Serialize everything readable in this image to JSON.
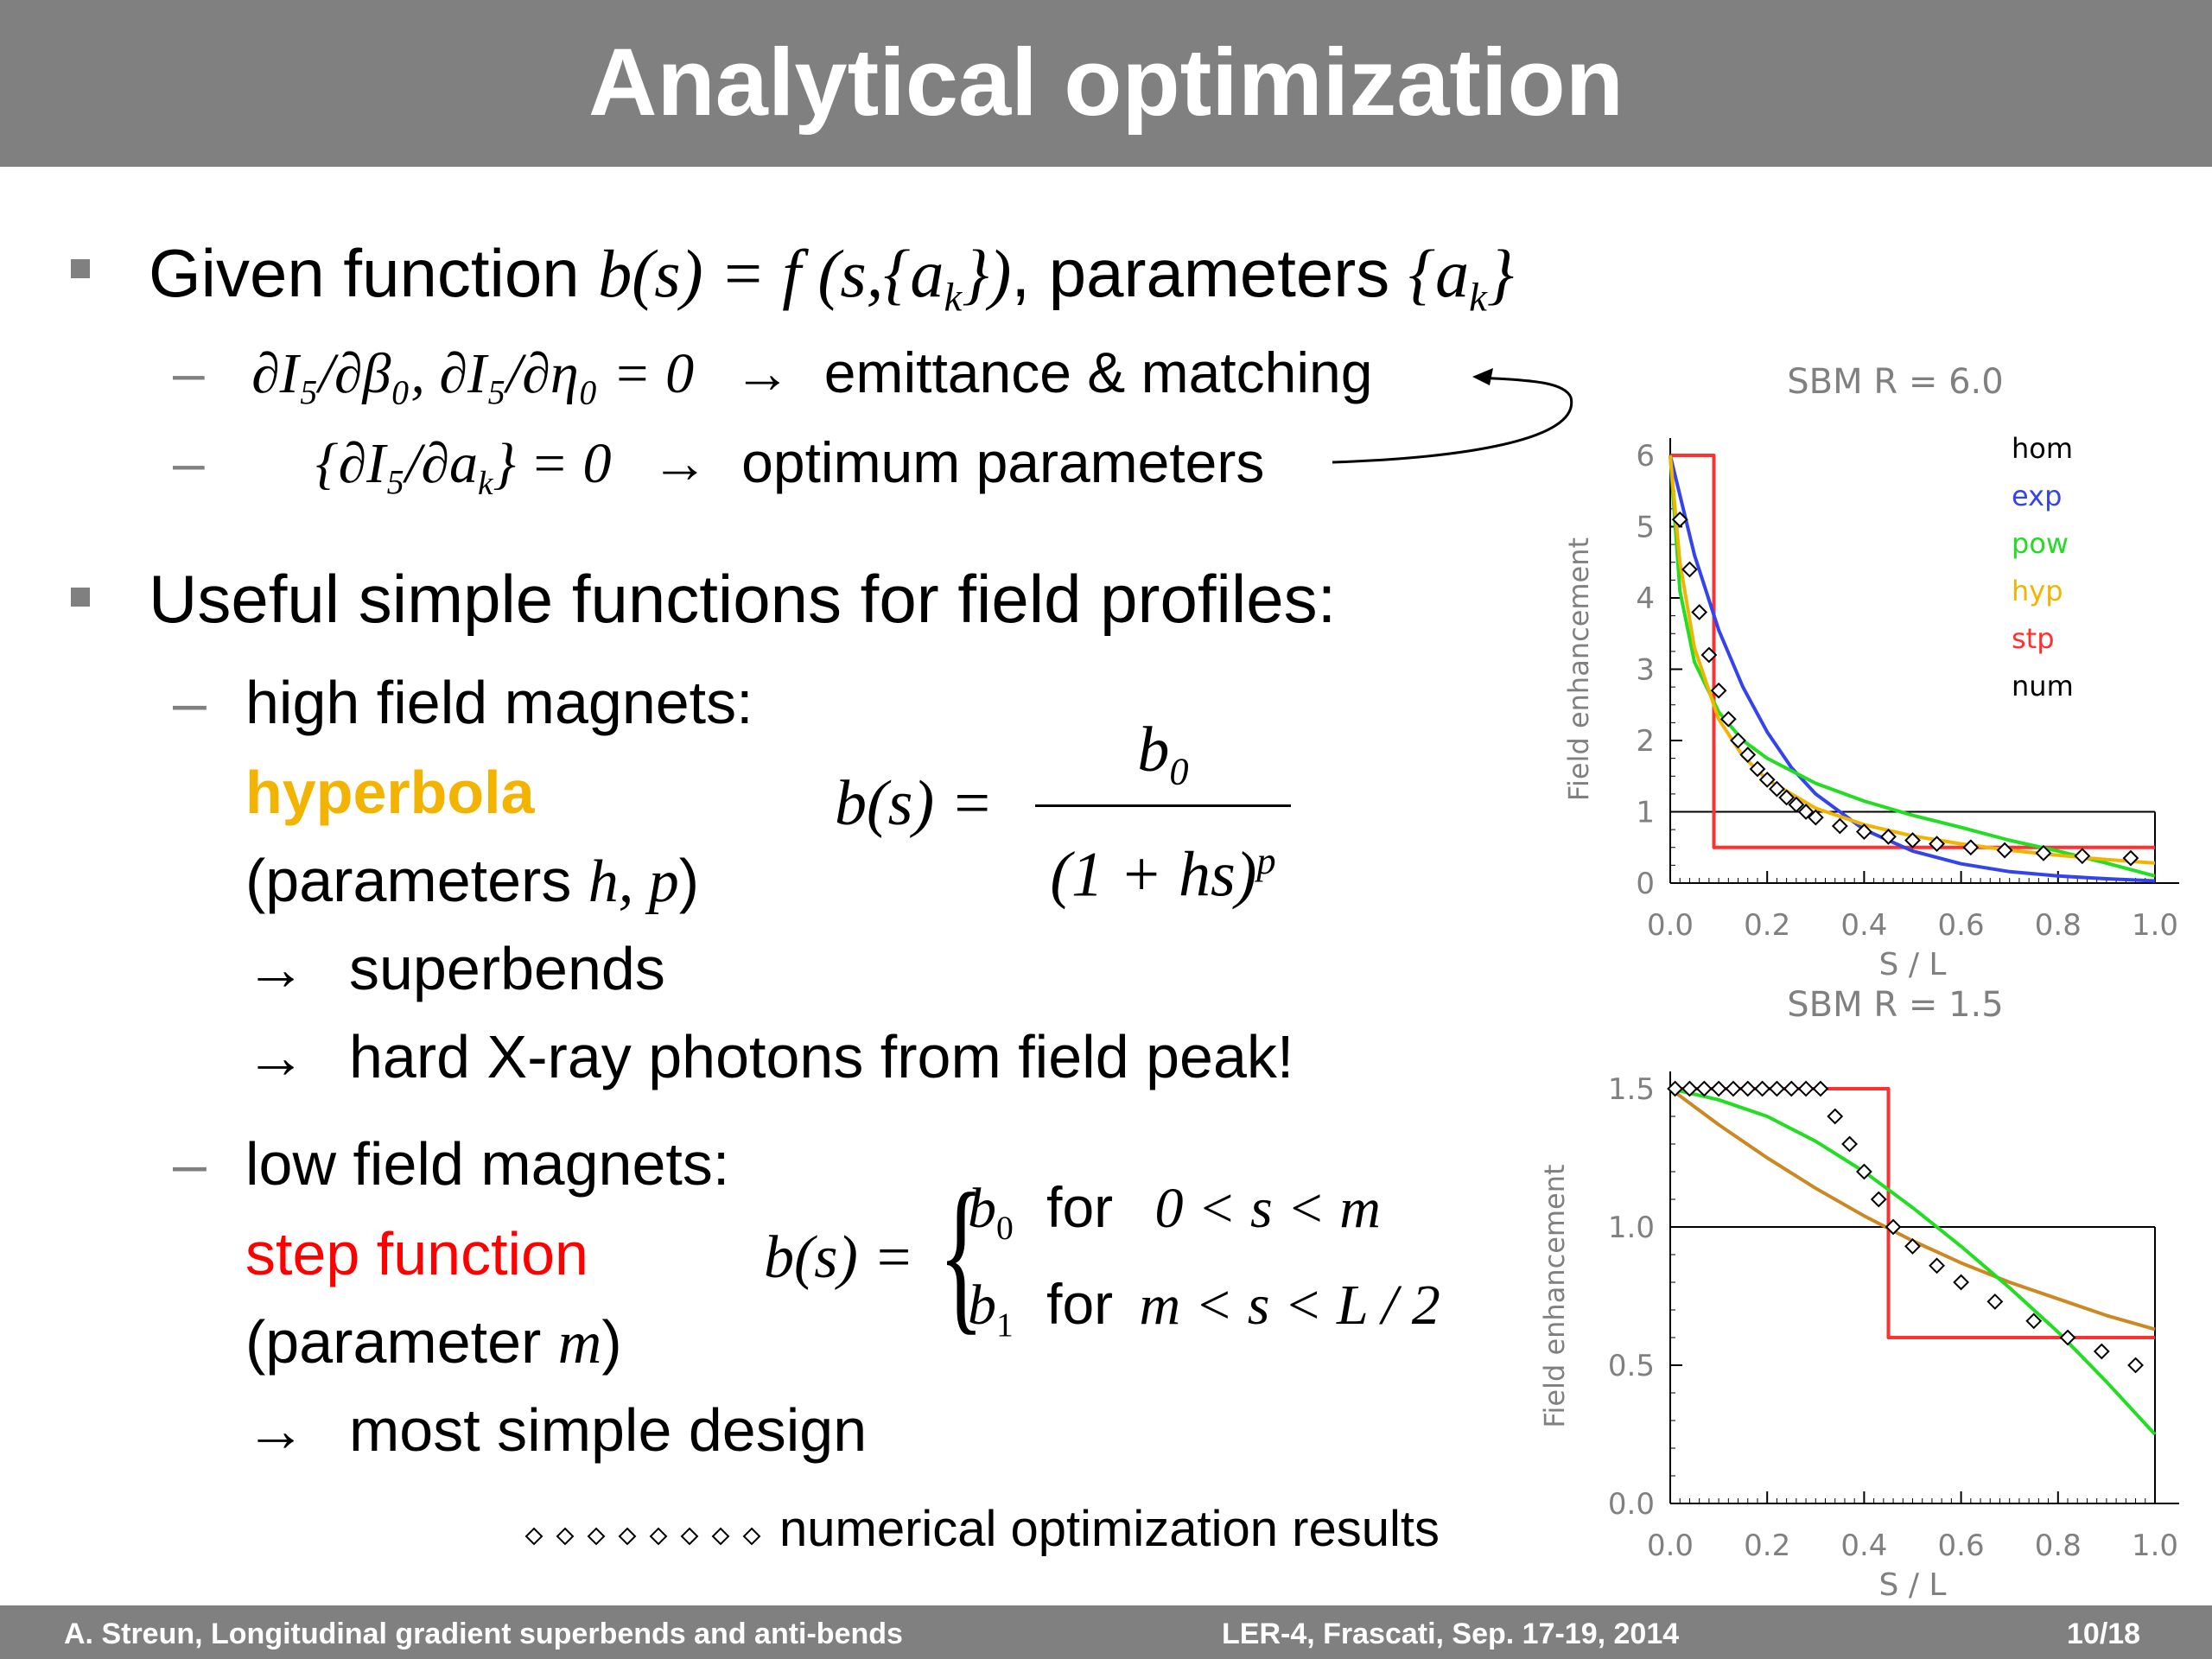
{
  "slide": {
    "title": "Analytical optimization",
    "footer_left": "A. Streun, Longitudinal gradient superbends and anti-bends",
    "footer_center": "LER-4, Frascati,  Sep. 17-19, 2014",
    "footer_right": "10/18"
  },
  "bullet1": {
    "text_a": "Given function ",
    "formula": "b(s) = f (s,{a",
    "formula_sub": "k",
    "formula_end": "})",
    "text_b": ", parameters ",
    "param_open": "{a",
    "param_sub": "k",
    "param_close": "}",
    "sub1_formula": "∂I₅/∂β₀, ∂I₅/∂η₀ = 0",
    "sub1_arrow": "→",
    "sub1_text": "emittance & matching",
    "sub2_formula": "{∂I₅/∂a",
    "sub2_formula_sub": "k",
    "sub2_formula_end": "} = 0",
    "sub2_arrow": "→",
    "sub2_text": "optimum parameters"
  },
  "bullet2": {
    "text": "Useful simple functions for field profiles:",
    "high_label": "high field magnets:",
    "hyperbola": "hyperbola",
    "hyp_params_a": "(parameters ",
    "hyp_params_m": "h, p",
    "hyp_params_b": ")",
    "arrow": "→",
    "superbends": "superbends",
    "hard_xray": "hard X-ray photons from field peak!",
    "hyp_lhs": "b(s) =",
    "hyp_num": "b",
    "hyp_num_sub": "0",
    "hyp_den": "(1 + hs)",
    "hyp_den_sup": "p",
    "low_label": "low field magnets:",
    "step_function": "step function",
    "step_params_a": "(parameter ",
    "step_params_m": "m",
    "step_params_b": ")",
    "simple_design": "most simple design",
    "step_lhs": "b(s) =",
    "case1_b": "b",
    "case1_sub": "0",
    "case1_for": "for",
    "case1_cond": "0 < s < m",
    "case2_b": "b",
    "case2_sub": "1",
    "case2_for": "for",
    "case2_cond": "m < s < L / 2",
    "numerical_note": "numerical optimization results"
  },
  "chart_data": [
    {
      "type": "line",
      "title": "SBM   R  =  6.0",
      "xlabel": "S  /  L",
      "ylabel": "Field enhancement",
      "xlim": [
        0,
        1.0
      ],
      "ylim": [
        0,
        6
      ],
      "xticks": [
        "0.0",
        "0.2",
        "0.4",
        "0.6",
        "0.8",
        "1.0"
      ],
      "yticks": [
        "0",
        "1",
        "2",
        "3",
        "4",
        "5",
        "6"
      ],
      "legend": [
        "hom",
        "exp",
        "pow",
        "hyp",
        "stp",
        "num"
      ],
      "legend_position": "top-right",
      "colors": {
        "hom": "#000000",
        "exp": "#3344ee",
        "pow": "#22dd22",
        "hyp": "#f2b400",
        "stp": "#ff3030",
        "num": "#000000"
      },
      "series": [
        {
          "name": "hom",
          "x": [
            0,
            1.0
          ],
          "y": [
            1,
            1
          ]
        },
        {
          "name": "stp",
          "x": [
            0,
            0.09,
            0.09,
            1.0
          ],
          "y": [
            6,
            6,
            0.5,
            0.5
          ]
        },
        {
          "name": "exp",
          "x": [
            0,
            0.05,
            0.1,
            0.15,
            0.2,
            0.25,
            0.3,
            0.4,
            0.5,
            0.6,
            0.7,
            0.8,
            0.9,
            1.0
          ],
          "y": [
            6,
            4.6,
            3.55,
            2.75,
            2.12,
            1.62,
            1.25,
            0.75,
            0.45,
            0.27,
            0.16,
            0.1,
            0.06,
            0.03
          ]
        },
        {
          "name": "pow",
          "x": [
            0,
            0.02,
            0.05,
            0.1,
            0.15,
            0.2,
            0.3,
            0.4,
            0.5,
            0.6,
            0.7,
            0.8,
            0.9,
            1.0
          ],
          "y": [
            6,
            4.1,
            3.1,
            2.4,
            2.0,
            1.75,
            1.4,
            1.15,
            0.95,
            0.78,
            0.6,
            0.45,
            0.28,
            0.1
          ]
        },
        {
          "name": "hyp",
          "x": [
            0,
            0.02,
            0.05,
            0.1,
            0.15,
            0.2,
            0.3,
            0.4,
            0.5,
            0.6,
            0.7,
            0.8,
            0.9,
            1.0
          ],
          "y": [
            6,
            4.5,
            3.3,
            2.3,
            1.78,
            1.45,
            1.05,
            0.82,
            0.66,
            0.55,
            0.46,
            0.39,
            0.33,
            0.28
          ]
        },
        {
          "name": "num",
          "x": [
            0.02,
            0.04,
            0.06,
            0.08,
            0.1,
            0.12,
            0.14,
            0.16,
            0.18,
            0.2,
            0.22,
            0.24,
            0.26,
            0.28,
            0.3,
            0.35,
            0.4,
            0.45,
            0.5,
            0.55,
            0.62,
            0.69,
            0.77,
            0.85,
            0.95
          ],
          "y": [
            5.1,
            4.4,
            3.8,
            3.2,
            2.7,
            2.3,
            2.0,
            1.8,
            1.6,
            1.45,
            1.32,
            1.2,
            1.1,
            1.0,
            0.92,
            0.8,
            0.72,
            0.65,
            0.6,
            0.55,
            0.5,
            0.46,
            0.42,
            0.38,
            0.35
          ]
        }
      ]
    },
    {
      "type": "line",
      "title": "SBM   R  =  1.5",
      "xlabel": "S  /  L",
      "ylabel": "Field enhancement",
      "xlim": [
        0,
        1.0
      ],
      "ylim": [
        0,
        1.5
      ],
      "xticks": [
        "0.0",
        "0.2",
        "0.4",
        "0.6",
        "0.8",
        "1.0"
      ],
      "yticks": [
        "0.0",
        "0.5",
        "1.0",
        "1.5"
      ],
      "colors": {
        "hom": "#000000",
        "pow": "#22dd22",
        "hyp": "#cc8822",
        "stp": "#ff3030",
        "num": "#000000"
      },
      "series": [
        {
          "name": "hom",
          "x": [
            0,
            1.0
          ],
          "y": [
            1,
            1
          ]
        },
        {
          "name": "stp",
          "x": [
            0,
            0.45,
            0.45,
            1.0
          ],
          "y": [
            1.5,
            1.5,
            0.6,
            0.6
          ]
        },
        {
          "name": "hyp",
          "x": [
            0,
            0.1,
            0.2,
            0.3,
            0.4,
            0.5,
            0.6,
            0.7,
            0.8,
            0.9,
            1.0
          ],
          "y": [
            1.5,
            1.37,
            1.25,
            1.14,
            1.04,
            0.95,
            0.87,
            0.8,
            0.74,
            0.68,
            0.63
          ]
        },
        {
          "name": "pow",
          "x": [
            0,
            0.1,
            0.2,
            0.3,
            0.4,
            0.5,
            0.6,
            0.7,
            0.8,
            0.9,
            1.0
          ],
          "y": [
            1.5,
            1.46,
            1.4,
            1.31,
            1.2,
            1.07,
            0.93,
            0.78,
            0.62,
            0.44,
            0.25
          ]
        },
        {
          "name": "num",
          "x": [
            0.01,
            0.04,
            0.07,
            0.1,
            0.13,
            0.16,
            0.19,
            0.22,
            0.25,
            0.28,
            0.31,
            0.34,
            0.37,
            0.4,
            0.43,
            0.46,
            0.5,
            0.55,
            0.6,
            0.67,
            0.75,
            0.82,
            0.89,
            0.96
          ],
          "y": [
            1.5,
            1.5,
            1.5,
            1.5,
            1.5,
            1.5,
            1.5,
            1.5,
            1.5,
            1.5,
            1.5,
            1.4,
            1.3,
            1.2,
            1.1,
            1.0,
            0.93,
            0.86,
            0.8,
            0.73,
            0.66,
            0.6,
            0.55,
            0.5
          ]
        }
      ]
    }
  ]
}
